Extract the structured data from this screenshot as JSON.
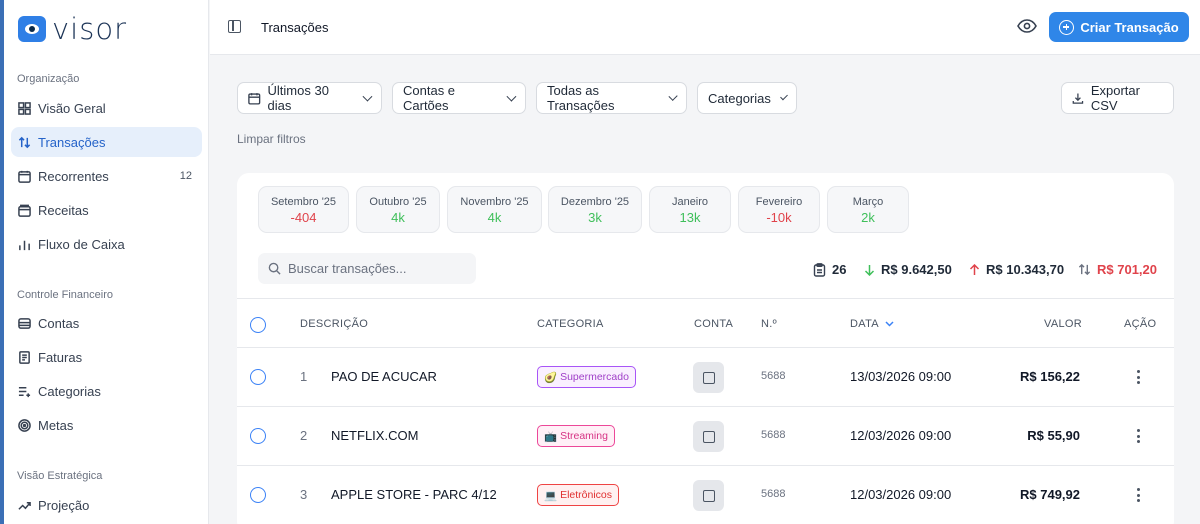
{
  "brand": {
    "name": "visor"
  },
  "sidebar": {
    "sections": [
      {
        "title": "Organização"
      },
      {
        "title": "Controle Financeiro"
      },
      {
        "title": "Visão Estratégica"
      }
    ],
    "items": [
      {
        "label": "Visão Geral",
        "icon": "grid-icon"
      },
      {
        "label": "Transações",
        "icon": "arrows-up-down-icon",
        "active": true
      },
      {
        "label": "Recorrentes",
        "icon": "calendar-repeat-icon",
        "badge": "12"
      },
      {
        "label": "Receitas",
        "icon": "wallet-icon"
      },
      {
        "label": "Fluxo de Caixa",
        "icon": "bar-chart-icon"
      },
      {
        "label": "Contas",
        "icon": "stack-icon"
      },
      {
        "label": "Faturas",
        "icon": "document-icon"
      },
      {
        "label": "Categorias",
        "icon": "list-plus-icon"
      },
      {
        "label": "Metas",
        "icon": "target-icon"
      },
      {
        "label": "Projeção",
        "icon": "trend-up-icon"
      }
    ]
  },
  "header": {
    "breadcrumb": "Transações",
    "create_button": "Criar Transação"
  },
  "filters": {
    "period": "Últimos 30 dias",
    "accounts": "Contas e Cartões",
    "type": "Todas as Transações",
    "categories": "Categorias",
    "export": "Exportar CSV",
    "clear": "Limpar filtros"
  },
  "months": [
    {
      "label": "Setembro '25",
      "value": "-404",
      "sign": "neg"
    },
    {
      "label": "Outubro '25",
      "value": "4k",
      "sign": "pos"
    },
    {
      "label": "Novembro '25",
      "value": "4k",
      "sign": "pos"
    },
    {
      "label": "Dezembro '25",
      "value": "3k",
      "sign": "pos"
    },
    {
      "label": "Janeiro",
      "value": "13k",
      "sign": "pos"
    },
    {
      "label": "Fevereiro",
      "value": "-10k",
      "sign": "neg"
    },
    {
      "label": "Março",
      "value": "2k",
      "sign": "pos"
    }
  ],
  "search": {
    "placeholder": "Buscar transações..."
  },
  "summary": {
    "count": "26",
    "income": "R$ 9.642,50",
    "expense": "R$ 10.343,70",
    "balance": "R$ 701,20"
  },
  "table": {
    "headers": {
      "description": "DESCRIÇÃO",
      "category": "CATEGORIA",
      "account": "CONTA",
      "number": "N.º",
      "date": "DATA",
      "value": "VALOR",
      "action": "AÇÃO"
    },
    "rows": [
      {
        "index": "1",
        "description": "PAO DE ACUCAR",
        "category": "Supermercado",
        "category_icon": "🥑",
        "number": "5688",
        "date": "13/03/2026 09:00",
        "value": "R$ 156,22"
      },
      {
        "index": "2",
        "description": "NETFLIX.COM",
        "category": "Streaming",
        "category_icon": "📺",
        "number": "5688",
        "date": "12/03/2026 09:00",
        "value": "R$ 55,90"
      },
      {
        "index": "3",
        "description": "APPLE STORE - PARC 4/12",
        "category": "Eletrônicos",
        "category_icon": "💻",
        "number": "5688",
        "date": "12/03/2026 09:00",
        "value": "R$ 749,92"
      }
    ]
  },
  "colors": {
    "accent": "#2f86e8",
    "negative": "#e0434b",
    "positive": "#3fbf5a"
  }
}
